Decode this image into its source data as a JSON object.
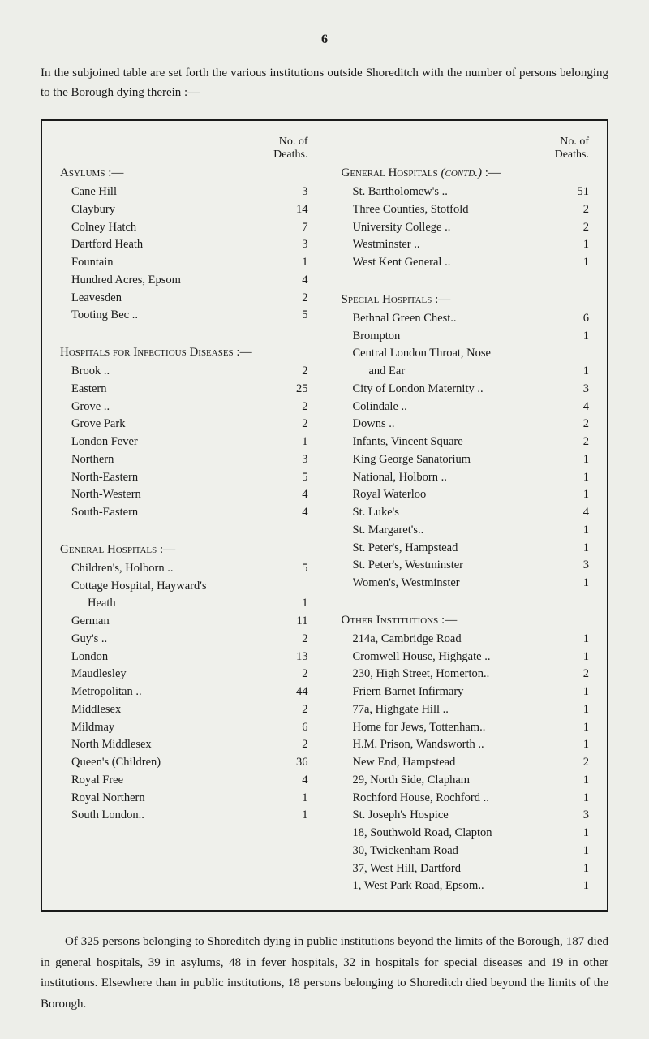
{
  "page_number": "6",
  "intro": "In the subjoined table are set forth the various institutions outside Shoreditch with the number of persons belonging to the Borough dying therein :—",
  "col_header_1": "No. of",
  "col_header_2": "Deaths.",
  "sections": {
    "asylums": {
      "title": "Asylums :—",
      "entries": [
        {
          "name": "Cane Hill",
          "value": "3"
        },
        {
          "name": "Claybury",
          "value": "14"
        },
        {
          "name": "Colney Hatch",
          "value": "7"
        },
        {
          "name": "Dartford Heath",
          "value": "3"
        },
        {
          "name": "Fountain",
          "value": "1"
        },
        {
          "name": "Hundred Acres, Epsom",
          "value": "4"
        },
        {
          "name": "Leavesden",
          "value": "2"
        },
        {
          "name": "Tooting Bec ..",
          "value": "5"
        }
      ]
    },
    "infectious": {
      "title": "Hospitals for Infectious Diseases :—",
      "entries": [
        {
          "name": "Brook ..",
          "value": "2"
        },
        {
          "name": "Eastern",
          "value": "25"
        },
        {
          "name": "Grove ..",
          "value": "2"
        },
        {
          "name": "Grove Park",
          "value": "2"
        },
        {
          "name": "London Fever",
          "value": "1"
        },
        {
          "name": "Northern",
          "value": "3"
        },
        {
          "name": "North-Eastern",
          "value": "5"
        },
        {
          "name": "North-Western",
          "value": "4"
        },
        {
          "name": "South-Eastern",
          "value": "4"
        }
      ]
    },
    "general_left": {
      "title": "General Hospitals :—",
      "entries": [
        {
          "name": "Children's, Holborn ..",
          "value": "5"
        },
        {
          "name": "Cottage Hospital, Hayward's",
          "value": ""
        },
        {
          "name": "Heath",
          "value": "1",
          "indent": true
        },
        {
          "name": "German",
          "value": "11"
        },
        {
          "name": "Guy's ..",
          "value": "2"
        },
        {
          "name": "London",
          "value": "13"
        },
        {
          "name": "Maudlesley",
          "value": "2"
        },
        {
          "name": "Metropolitan ..",
          "value": "44"
        },
        {
          "name": "Middlesex",
          "value": "2"
        },
        {
          "name": "Mildmay",
          "value": "6"
        },
        {
          "name": "North Middlesex",
          "value": "2"
        },
        {
          "name": "Queen's (Children)",
          "value": "36"
        },
        {
          "name": "Royal Free",
          "value": "4"
        },
        {
          "name": "Royal Northern",
          "value": "1"
        },
        {
          "name": "South London..",
          "value": "1"
        }
      ]
    },
    "general_right": {
      "title": "General Hospitals (contd.) :—",
      "entries": [
        {
          "name": "St. Bartholomew's  ..",
          "value": "51"
        },
        {
          "name": "Three Counties, Stotfold",
          "value": "2"
        },
        {
          "name": "University College  ..",
          "value": "2"
        },
        {
          "name": "Westminster ..",
          "value": "1"
        },
        {
          "name": "West Kent General ..",
          "value": "1"
        }
      ]
    },
    "special": {
      "title": "Special Hospitals :—",
      "entries": [
        {
          "name": "Bethnal Green Chest..",
          "value": "6"
        },
        {
          "name": "Brompton",
          "value": "1"
        },
        {
          "name": "Central London Throat, Nose",
          "value": ""
        },
        {
          "name": "and Ear",
          "value": "1",
          "indent": true
        },
        {
          "name": "City of London Maternity ..",
          "value": "3"
        },
        {
          "name": "Colindale ..",
          "value": "4"
        },
        {
          "name": "Downs ..",
          "value": "2"
        },
        {
          "name": "Infants, Vincent Square",
          "value": "2"
        },
        {
          "name": "King George Sanatorium",
          "value": "1"
        },
        {
          "name": "National, Holborn  ..",
          "value": "1"
        },
        {
          "name": "Royal Waterloo",
          "value": "1"
        },
        {
          "name": "St. Luke's",
          "value": "4"
        },
        {
          "name": "St. Margaret's..",
          "value": "1"
        },
        {
          "name": "St. Peter's, Hampstead",
          "value": "1"
        },
        {
          "name": "St. Peter's, Westminster",
          "value": "3"
        },
        {
          "name": "Women's, Westminster",
          "value": "1"
        }
      ]
    },
    "other": {
      "title": "Other Institutions :—",
      "entries": [
        {
          "name": "214a, Cambridge Road",
          "value": "1"
        },
        {
          "name": "Cromwell House, Highgate ..",
          "value": "1"
        },
        {
          "name": "230, High Street, Homerton..",
          "value": "2"
        },
        {
          "name": "Friern Barnet Infirmary",
          "value": "1"
        },
        {
          "name": "77a, Highgate Hill  ..",
          "value": "1"
        },
        {
          "name": "Home for Jews, Tottenham..",
          "value": "1"
        },
        {
          "name": "H.M. Prison, Wandsworth ..",
          "value": "1"
        },
        {
          "name": "New End, Hampstead",
          "value": "2"
        },
        {
          "name": "29, North Side, Clapham",
          "value": "1"
        },
        {
          "name": "Rochford House, Rochford ..",
          "value": "1"
        },
        {
          "name": "St. Joseph's Hospice",
          "value": "3"
        },
        {
          "name": "18, Southwold Road, Clapton",
          "value": "1"
        },
        {
          "name": "30, Twickenham Road",
          "value": "1"
        },
        {
          "name": "37, West Hill, Dartford",
          "value": "1"
        },
        {
          "name": "1, West Park Road, Epsom..",
          "value": "1"
        }
      ]
    }
  },
  "footer": "Of 325 persons belonging to Shoreditch dying in public institutions beyond the limits of the Borough, 187 died in general hospitals, 39 in asylums, 48 in fever hospitals, 32 in hospitals for special diseases and 19 in other institutions. Elsewhere than in public institutions, 18 persons belonging to Shoreditch died beyond the limits of the Borough."
}
